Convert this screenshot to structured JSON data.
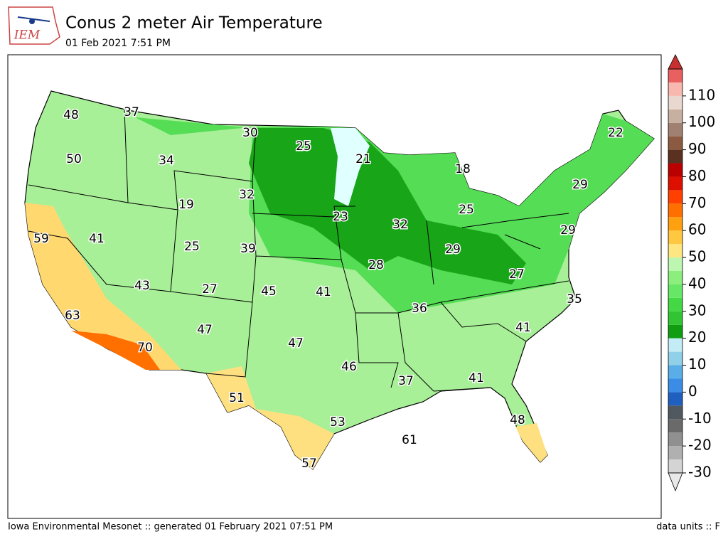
{
  "header": {
    "title": "Conus 2 meter Air Temperature",
    "subtitle": "01 Feb 2021 7:51 PM",
    "logo_text": "IEM"
  },
  "footer": {
    "left": "Iowa Environmental Mesonet :: generated 01 February 2021 07:51 PM",
    "right": "data units :: F"
  },
  "map": {
    "station_values": [
      48,
      37,
      30,
      25,
      21,
      18,
      22,
      50,
      34,
      32,
      29,
      19,
      23,
      32,
      25,
      59,
      41,
      25,
      39,
      29,
      29,
      28,
      27,
      43,
      27,
      45,
      41,
      35,
      36,
      63,
      47,
      47,
      41,
      70,
      46,
      37,
      41,
      51,
      53,
      48,
      61,
      57
    ]
  },
  "colorbar": {
    "vlim": [
      -30,
      120
    ],
    "ticks": [
      -30,
      -20,
      -10,
      0,
      10,
      20,
      30,
      40,
      50,
      60,
      70,
      80,
      90,
      100,
      110
    ],
    "colors": [
      "#d4d4d4",
      "#b0b0b0",
      "#909090",
      "#6a6a6a",
      "#505860",
      "#1f5fc0",
      "#3a8ce6",
      "#5aaee8",
      "#90d0e8",
      "#c4ecf6",
      "#109e10",
      "#33c433",
      "#44d844",
      "#66e866",
      "#8cee7c",
      "#bcf6b0",
      "#ffe680",
      "#ffc840",
      "#ffa010",
      "#ff7000",
      "#ff4000",
      "#dd1000",
      "#bb0000",
      "#5a3020",
      "#8b5a40",
      "#a08070",
      "#c8b0a0",
      "#e8d8d0",
      "#f8b8b0",
      "#e86060"
    ],
    "under_color": "#e8e8e8",
    "over_color": "#c83030"
  }
}
